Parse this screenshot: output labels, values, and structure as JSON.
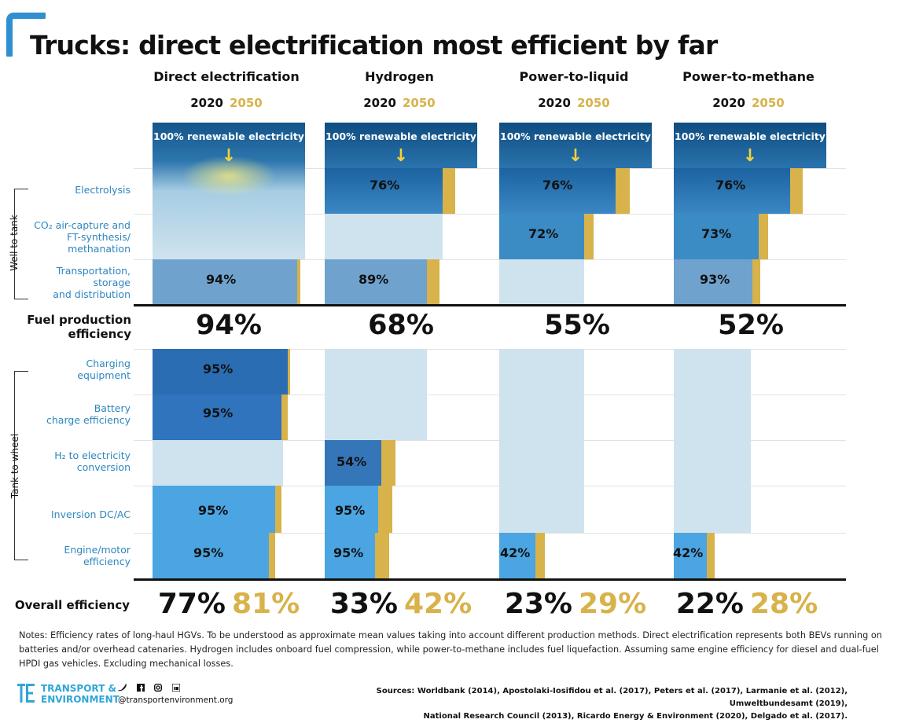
{
  "title": "Trucks: direct electrification most efficient by far",
  "colors": {
    "brand_blue": "#2f8fd0",
    "renewable_top": "#0f4d80",
    "electrolysis_blue": "#1c63a0",
    "co2_blue": "#3b8bc4",
    "transport_blue": "#6fa2cc",
    "pale_blue": "#cfe3ee",
    "charging_blue": "#2a6db3",
    "battery_blue": "#2f74bd",
    "h2_blue": "#3576b8",
    "light_blue": "#4aa5e2",
    "gold": "#d8b24a",
    "label_blue": "#2d86bf"
  },
  "years": {
    "y2020": "2020",
    "y2050": "2050"
  },
  "renewable_label": "100% renewable electricity",
  "side_labels": {
    "well_to_tank": "Well to tank",
    "tank_to_wheel": "Tank to wheel"
  },
  "row_labels": {
    "electrolysis": "Electrolysis",
    "co2_line1": "CO₂ air-capture and",
    "co2_line2": "FT-synthesis/",
    "co2_line3": "methanation",
    "transport_line1": "Transportation,",
    "transport_line2": "storage",
    "transport_line3": "and distribution",
    "fuel_line1": "Fuel production",
    "fuel_line2": "efficiency",
    "charging_line1": "Charging",
    "charging_line2": "equipment",
    "battery_line1": "Battery",
    "battery_line2": "charge efficiency",
    "h2_line1": "H₂ to electricity",
    "h2_line2": "conversion",
    "inversion": "Inversion DC/AC",
    "engine_line1": "Engine/motor",
    "engine_line2": "efficiency",
    "overall": "Overall efficiency"
  },
  "chart_data": {
    "type": "table",
    "title": "Trucks: direct electrification most efficient by far",
    "columns": [
      "Direct electrification",
      "Hydrogen",
      "Power-to-liquid",
      "Power-to-methane"
    ],
    "rows": {
      "electrolysis": [
        "",
        "76%",
        "76%",
        "76%"
      ],
      "co2_capture": [
        "",
        "",
        "72%",
        "73%"
      ],
      "transport_storage": [
        "94%",
        "89%",
        "",
        "93%"
      ],
      "fuel_production_efficiency": [
        "94%",
        "68%",
        "55%",
        "52%"
      ],
      "charging_equipment": [
        "95%",
        "",
        "",
        ""
      ],
      "battery_charge_efficiency": [
        "95%",
        "",
        "",
        ""
      ],
      "h2_to_electricity": [
        "",
        "54%",
        "",
        ""
      ],
      "inversion_dc_ac": [
        "95%",
        "95%",
        "",
        ""
      ],
      "engine_motor_efficiency": [
        "95%",
        "95%",
        "42%",
        "42%"
      ]
    },
    "overall_2020": [
      "77%",
      "33%",
      "23%",
      "22%"
    ],
    "overall_2050": [
      "81%",
      "42%",
      "29%",
      "28%"
    ]
  },
  "notes": "Notes: Efficiency rates of long-haul HGVs. To be understood as approximate mean values taking into account different production methods. Direct electrification represents both BEVs  running on batteries and/or overhead catenaries. Hydrogen includes onboard fuel compression, while power-to-methane includes fuel liquefaction. Assuming same engine efficiency for diesel and dual-fuel HPDI gas vehicles. Excluding mechanical losses.",
  "footer": {
    "brand_line1": "TRANSPORT &",
    "brand_line2": "ENVIRONMENT",
    "website": "@transportenvironment.org",
    "social_icons": [
      "twitter-icon",
      "facebook-icon",
      "instagram-icon",
      "linkedin-icon"
    ],
    "sources_line1": "Sources: Worldbank (2014), Apostolaki-Iosifidou et al. (2017), Peters et al. (2017), Larmanie et al. (2012), Umweltbundesamt (2019),",
    "sources_line2": "National Research Council (2013), Ricardo Energy & Environment (2020), Delgado et al. (2017)."
  }
}
